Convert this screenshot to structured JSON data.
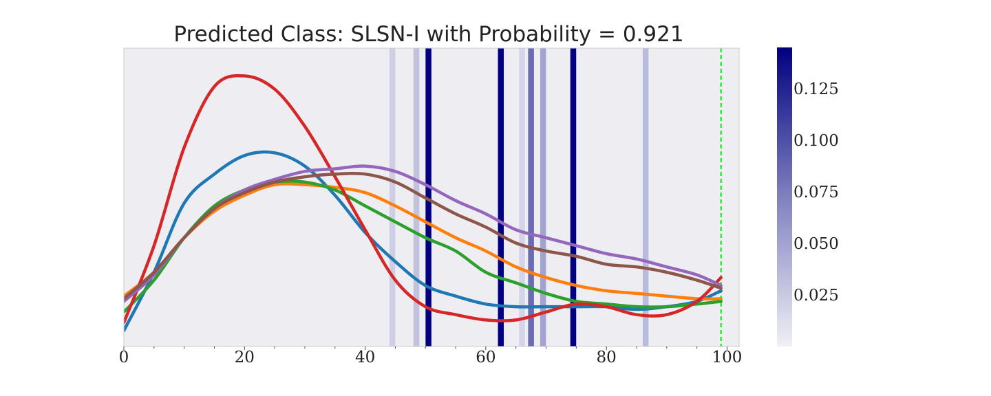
{
  "chart_data": {
    "type": "line",
    "title": "Predicted Class: SLSN-I with Probability = 0.921",
    "xlabel": "",
    "ylabel": "",
    "xlim": [
      0,
      102
    ],
    "ylim": [
      0,
      1
    ],
    "x_ticks": [
      "0",
      "20",
      "40",
      "60",
      "80",
      "100"
    ],
    "grid": false,
    "y_tick_labels_shown": false,
    "marker_line": {
      "x": 99,
      "color": "#00ee00",
      "style": "dashed"
    },
    "attention_bands": [
      {
        "x": 44.5,
        "weight": 0.022
      },
      {
        "x": 48.5,
        "weight": 0.03
      },
      {
        "x": 50.5,
        "weight": 0.145
      },
      {
        "x": 62.5,
        "weight": 0.145
      },
      {
        "x": 66.0,
        "weight": 0.018
      },
      {
        "x": 67.5,
        "weight": 0.085
      },
      {
        "x": 69.5,
        "weight": 0.05
      },
      {
        "x": 74.5,
        "weight": 0.145
      },
      {
        "x": 86.5,
        "weight": 0.035
      }
    ],
    "colorbar": {
      "min": 0.0,
      "max": 0.145,
      "ticks": [
        "0.025",
        "0.050",
        "0.075",
        "0.100",
        "0.125"
      ],
      "tick_values": [
        0.025,
        0.05,
        0.075,
        0.1,
        0.125
      ],
      "color_low": "#f0f0f5",
      "color_high": "#000080"
    },
    "series": [
      {
        "color": "#1f77b4",
        "x": [
          0,
          5,
          10,
          15,
          20,
          25,
          30,
          35,
          40,
          45,
          50,
          55,
          60,
          65,
          70,
          75,
          80,
          85,
          90,
          95,
          99
        ],
        "y": [
          0.04,
          0.26,
          0.52,
          0.63,
          0.7,
          0.71,
          0.66,
          0.55,
          0.41,
          0.3,
          0.21,
          0.17,
          0.14,
          0.13,
          0.13,
          0.13,
          0.13,
          0.12,
          0.13,
          0.15,
          0.19
        ]
      },
      {
        "color": "#ff7f0e",
        "x": [
          0,
          5,
          10,
          15,
          20,
          25,
          30,
          35,
          40,
          45,
          50,
          55,
          60,
          65,
          70,
          75,
          80,
          85,
          90,
          95,
          99
        ],
        "y": [
          0.17,
          0.26,
          0.39,
          0.49,
          0.55,
          0.59,
          0.59,
          0.58,
          0.56,
          0.51,
          0.45,
          0.39,
          0.34,
          0.28,
          0.24,
          0.21,
          0.19,
          0.18,
          0.17,
          0.16,
          0.16
        ]
      },
      {
        "color": "#2ca02c",
        "x": [
          0,
          5,
          10,
          15,
          20,
          25,
          30,
          35,
          40,
          45,
          50,
          55,
          60,
          65,
          70,
          75,
          80,
          85,
          90,
          95,
          99
        ],
        "y": [
          0.11,
          0.23,
          0.39,
          0.51,
          0.57,
          0.6,
          0.6,
          0.57,
          0.51,
          0.45,
          0.39,
          0.34,
          0.26,
          0.22,
          0.18,
          0.15,
          0.14,
          0.13,
          0.13,
          0.14,
          0.15
        ]
      },
      {
        "color": "#d62728",
        "x": [
          0,
          5,
          10,
          15,
          20,
          25,
          30,
          35,
          40,
          45,
          50,
          55,
          60,
          65,
          70,
          75,
          80,
          85,
          90,
          95,
          99
        ],
        "y": [
          0.07,
          0.36,
          0.73,
          0.96,
          1.0,
          0.95,
          0.81,
          0.62,
          0.42,
          0.23,
          0.13,
          0.1,
          0.08,
          0.08,
          0.11,
          0.14,
          0.13,
          0.1,
          0.1,
          0.15,
          0.24
        ]
      },
      {
        "color": "#9467bd",
        "x": [
          0,
          5,
          10,
          15,
          20,
          25,
          30,
          35,
          40,
          45,
          50,
          55,
          60,
          65,
          70,
          75,
          80,
          85,
          90,
          95,
          99
        ],
        "y": [
          0.15,
          0.25,
          0.39,
          0.5,
          0.57,
          0.61,
          0.64,
          0.65,
          0.66,
          0.64,
          0.59,
          0.53,
          0.48,
          0.42,
          0.39,
          0.36,
          0.33,
          0.31,
          0.28,
          0.25,
          0.21
        ]
      },
      {
        "color": "#8c564b",
        "x": [
          0,
          5,
          10,
          15,
          20,
          25,
          30,
          35,
          40,
          45,
          50,
          55,
          60,
          65,
          70,
          75,
          80,
          85,
          90,
          95,
          99
        ],
        "y": [
          0.16,
          0.26,
          0.39,
          0.5,
          0.56,
          0.6,
          0.62,
          0.63,
          0.63,
          0.6,
          0.54,
          0.48,
          0.43,
          0.37,
          0.34,
          0.32,
          0.29,
          0.28,
          0.26,
          0.23,
          0.2
        ]
      }
    ]
  }
}
